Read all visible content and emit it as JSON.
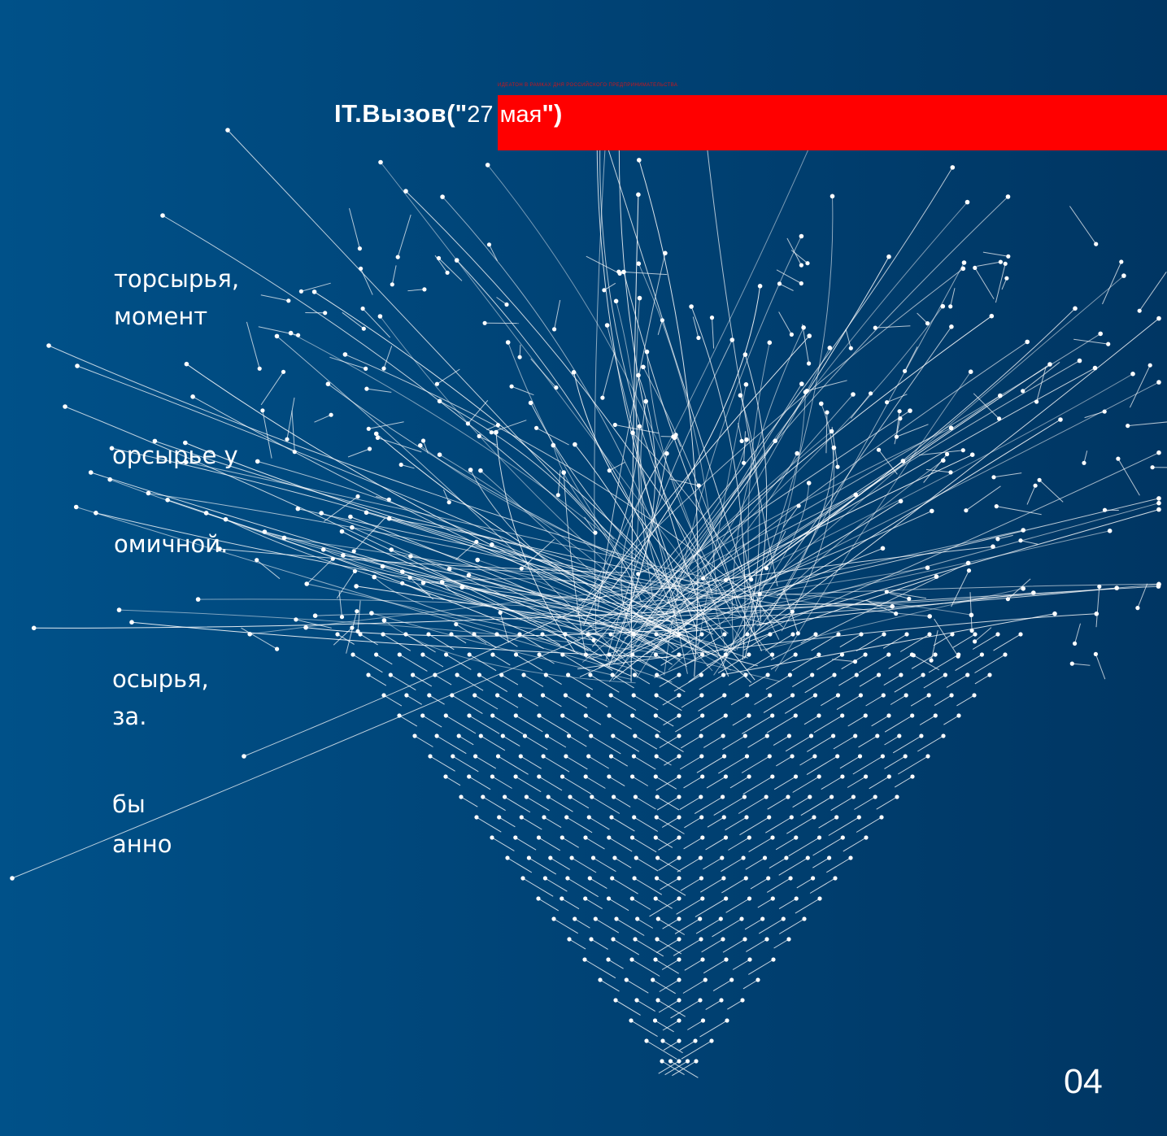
{
  "header": {
    "caption": "ИДЕАТОН В РАМКАХ ДНЯ РОССИЙСКОГО ПРЕДПРИНИМАТЕЛЬСТВА",
    "brand": "IT.Вызов",
    "open_quote": "(\"",
    "date": "27 мая",
    "close_quote": "\")"
  },
  "text_fragments": [
    "торсырья,",
    "момент",
    "орсырье у",
    "омичной.",
    "осырья,",
    "за.",
    "бы",
    "анно"
  ],
  "page_number": "04",
  "colors": {
    "background_start": "#005189",
    "background_end": "#003663",
    "accent_red": "#ff0000",
    "line_color": "#ffffff"
  }
}
